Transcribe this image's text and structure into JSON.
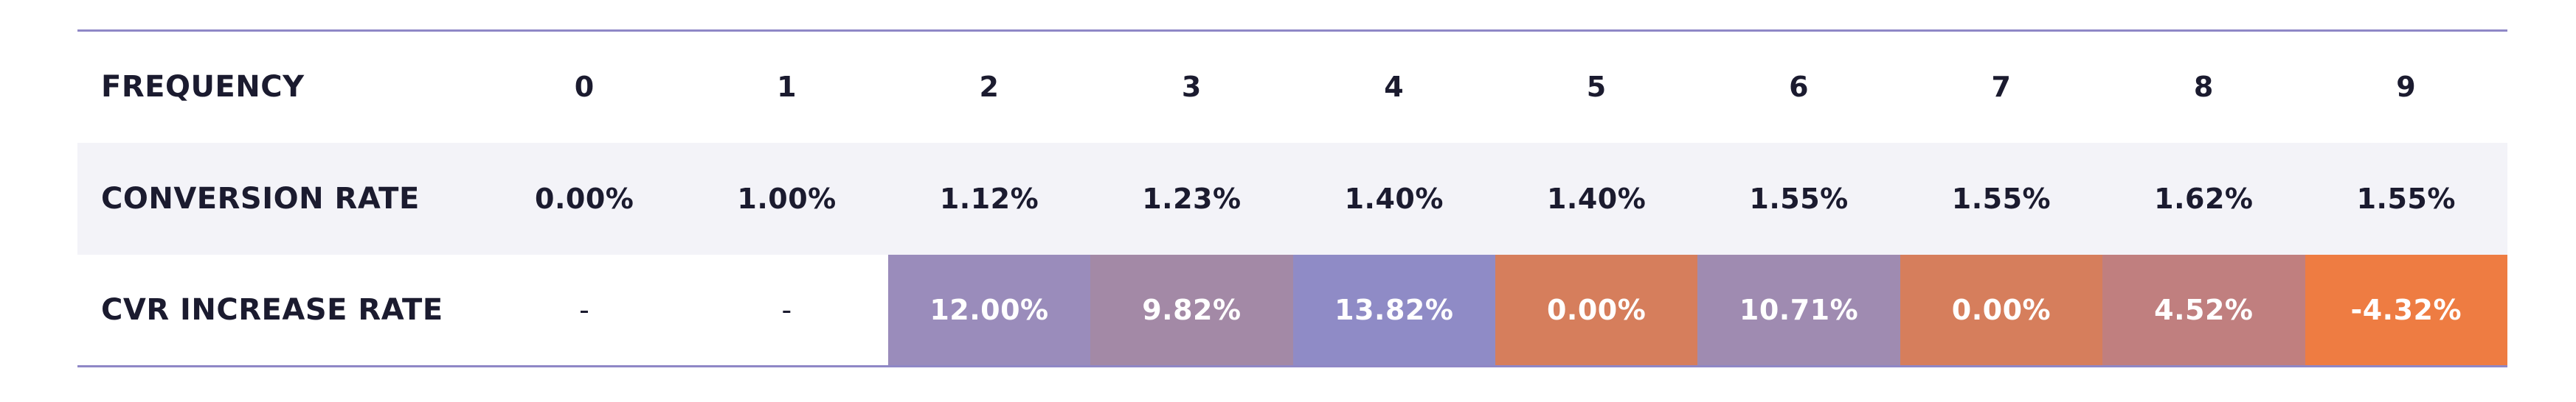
{
  "table": {
    "header_label": "FREQUENCY",
    "frequencies": [
      "0",
      "1",
      "2",
      "3",
      "4",
      "5",
      "6",
      "7",
      "8",
      "9"
    ],
    "conversion_label": "CONVERSION RATE",
    "conversion_rates": [
      "0.00%",
      "1.00%",
      "1.12%",
      "1.23%",
      "1.40%",
      "1.40%",
      "1.55%",
      "1.55%",
      "1.62%",
      "1.55%"
    ],
    "increase_label": "CVR INCREASE RATE",
    "increase_rates": [
      "-",
      "-",
      "12.00%",
      "9.82%",
      "13.82%",
      "0.00%",
      "10.71%",
      "0.00%",
      "4.52%",
      "-4.32%"
    ]
  },
  "colors": {
    "rule": "#8f87c6",
    "stripe": "#f3f3f8",
    "text": "#1b1b2f",
    "heat_cells": [
      "",
      "",
      "#9a8cbb",
      "#a389a6",
      "#8f8bc6",
      "#d67e5c",
      "#9f8bb1",
      "#d67e5c",
      "#c07f7f",
      "#ee7c42"
    ]
  }
}
